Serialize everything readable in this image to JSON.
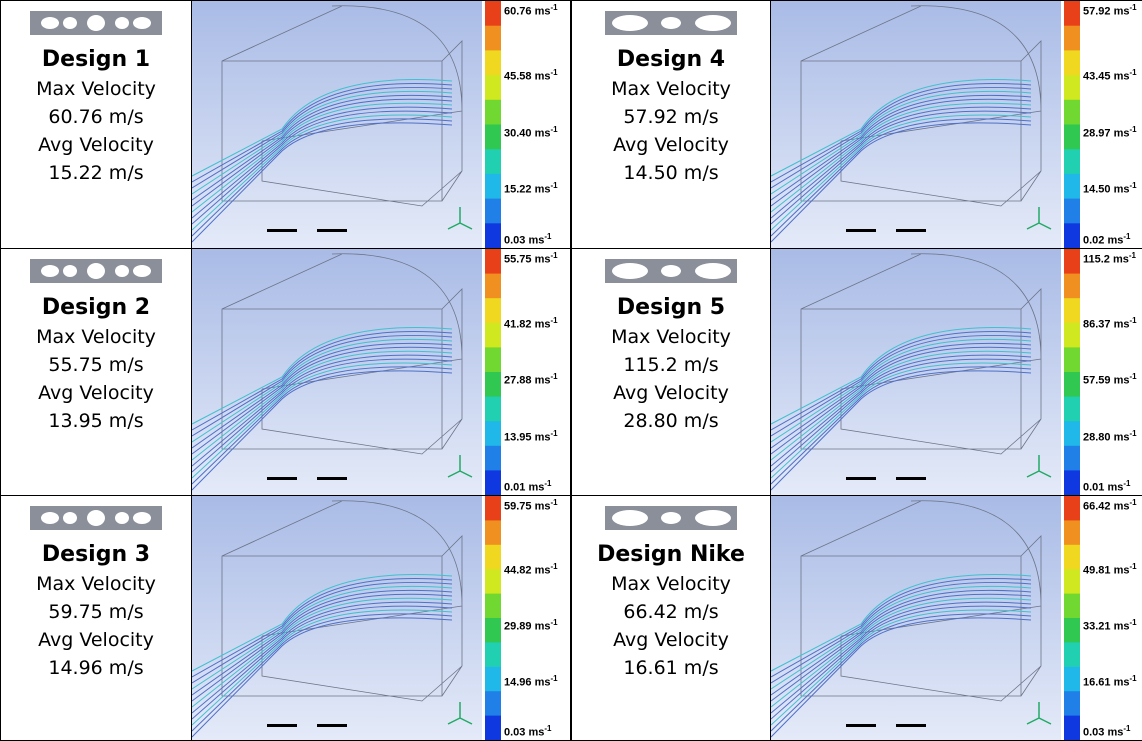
{
  "designs": [
    {
      "title": "Design 1",
      "max_label": "Max Velocity",
      "max": "60.76 m/s",
      "avg_label": "Avg Velocity",
      "avg": "15.22 m/s",
      "legend": [
        {
          "text": "60.76 ms",
          "sup": "-1"
        },
        {
          "text": "45.58 ms",
          "sup": "-1"
        },
        {
          "text": "30.40 ms",
          "sup": "-1"
        },
        {
          "text": "15.22 ms",
          "sup": "-1"
        },
        {
          "text": "0.03 ms",
          "sup": "-1"
        }
      ]
    },
    {
      "title": "Design 4",
      "max_label": "Max Velocity",
      "max": "57.92 m/s",
      "avg_label": "Avg Velocity",
      "avg": "14.50 m/s",
      "legend": [
        {
          "text": "57.92 ms",
          "sup": "-1"
        },
        {
          "text": "43.45 ms",
          "sup": "-1"
        },
        {
          "text": "28.97 ms",
          "sup": "-1"
        },
        {
          "text": "14.50 ms",
          "sup": "-1"
        },
        {
          "text": "0.02 ms",
          "sup": "-1"
        }
      ]
    },
    {
      "title": "Design 2",
      "max_label": "Max Velocity",
      "max": "55.75 m/s",
      "avg_label": "Avg Velocity",
      "avg": "13.95 m/s",
      "legend": [
        {
          "text": "55.75 ms",
          "sup": "-1"
        },
        {
          "text": "41.82 ms",
          "sup": "-1"
        },
        {
          "text": "27.88 ms",
          "sup": "-1"
        },
        {
          "text": "13.95 ms",
          "sup": "-1"
        },
        {
          "text": "0.01 ms",
          "sup": "-1"
        }
      ]
    },
    {
      "title": "Design 5",
      "max_label": "Max Velocity",
      "max": "115.2 m/s",
      "avg_label": "Avg Velocity",
      "avg": "28.80 m/s",
      "legend": [
        {
          "text": "115.2 ms",
          "sup": "-1"
        },
        {
          "text": "86.37 ms",
          "sup": "-1"
        },
        {
          "text": "57.59 ms",
          "sup": "-1"
        },
        {
          "text": "28.80 ms",
          "sup": "-1"
        },
        {
          "text": "0.01 ms",
          "sup": "-1"
        }
      ]
    },
    {
      "title": "Design 3",
      "max_label": "Max Velocity",
      "max": "59.75 m/s",
      "avg_label": "Avg Velocity",
      "avg": "14.96 m/s",
      "legend": [
        {
          "text": "59.75 ms",
          "sup": "-1"
        },
        {
          "text": "44.82 ms",
          "sup": "-1"
        },
        {
          "text": "29.89 ms",
          "sup": "-1"
        },
        {
          "text": "14.96 ms",
          "sup": "-1"
        },
        {
          "text": "0.03 ms",
          "sup": "-1"
        }
      ]
    },
    {
      "title": "Design Nike",
      "max_label": "Max Velocity",
      "max": "66.42 m/s",
      "avg_label": "Avg Velocity",
      "avg": "16.61 m/s",
      "legend": [
        {
          "text": "66.42 ms",
          "sup": "-1"
        },
        {
          "text": "49.81 ms",
          "sup": "-1"
        },
        {
          "text": "33.21 ms",
          "sup": "-1"
        },
        {
          "text": "16.61 ms",
          "sup": "-1"
        },
        {
          "text": "0.03 ms",
          "sup": "-1"
        }
      ]
    }
  ]
}
